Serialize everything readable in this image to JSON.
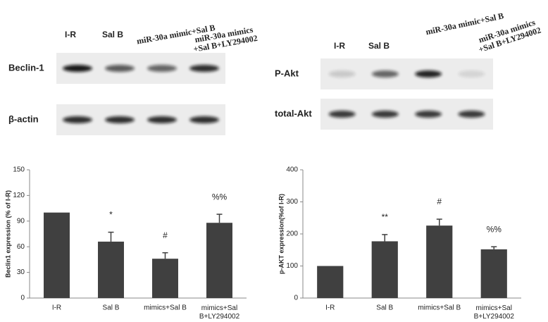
{
  "blots": [
    {
      "lanes": [
        "I-R",
        "Sal B",
        "miR-30a mimic+Sal B",
        [
          "miR-30a mimics",
          "+Sal B+LY294002"
        ]
      ],
      "rows": [
        "Beclin-1",
        "β-actin"
      ]
    },
    {
      "lanes": [
        "I-R",
        "Sal B",
        "miR-30a mimic+Sal B",
        [
          "miR-30a mimics",
          "+Sal B+LY294002"
        ]
      ],
      "rows": [
        "P-Akt",
        "total-Akt"
      ]
    }
  ],
  "chart_data": [
    {
      "type": "bar",
      "y_label": "Beclin1 expression (% of I-R)",
      "categories": [
        "I-R",
        "Sal B",
        "mimics+Sal B",
        [
          "mimics+Sal",
          "B+LY294002"
        ]
      ],
      "values": [
        100,
        66,
        46,
        88
      ],
      "errors": [
        null,
        11,
        7,
        10
      ],
      "annotations": [
        null,
        "*",
        "#",
        "%%"
      ],
      "color": "#404040",
      "ylim": [
        0,
        150
      ],
      "yticks": [
        0,
        30,
        60,
        90,
        120,
        150
      ]
    },
    {
      "type": "bar",
      "y_label": "p-AKT expression(%of I-R)",
      "categories": [
        "I-R",
        "Sal B",
        "mimics+Sal B",
        [
          "mimics+Sal",
          "B+LY294002"
        ]
      ],
      "values": [
        100,
        177,
        226,
        152
      ],
      "errors": [
        null,
        21,
        20,
        8
      ],
      "annotations": [
        null,
        "**",
        "#",
        "%%"
      ],
      "color": "#404040",
      "ylim": [
        0,
        400
      ],
      "yticks": [
        0,
        100,
        200,
        300,
        400
      ]
    }
  ]
}
